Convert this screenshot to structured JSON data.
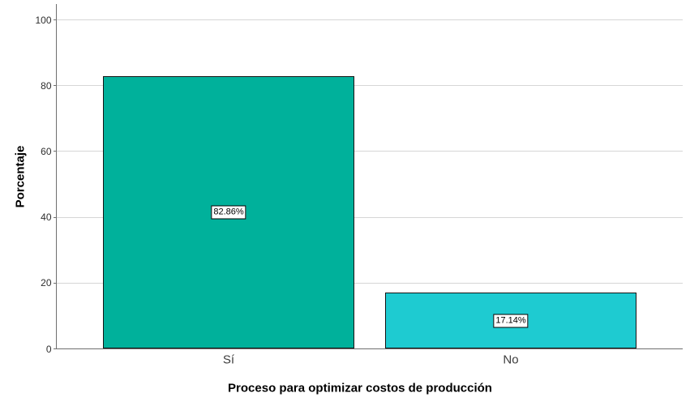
{
  "chart_data": {
    "type": "bar",
    "title": "",
    "categories": [
      "Sí",
      "No"
    ],
    "values": [
      82.86,
      17.14
    ],
    "value_labels": [
      "82.86%",
      "17.14%"
    ],
    "bar_colors": [
      "#00b19b",
      "#1ecbd1"
    ],
    "xlabel": "Proceso para optimizar costos de producción",
    "ylabel": "Porcentaje",
    "ylim": [
      0,
      100
    ],
    "yticks": [
      0,
      20,
      40,
      60,
      80,
      100
    ],
    "grid": true,
    "legend_position": "none"
  },
  "colors": {
    "background": "#ffffff",
    "gridline": "#d6d6d6",
    "axis_line": "#6f6f6f",
    "bar_border": "#141414",
    "value_label_bg": "#ffffff",
    "value_label_border": "#000000",
    "category_text": "#3d3d3d",
    "tick_text": "#2e2e2e",
    "title_text": "#000000"
  }
}
